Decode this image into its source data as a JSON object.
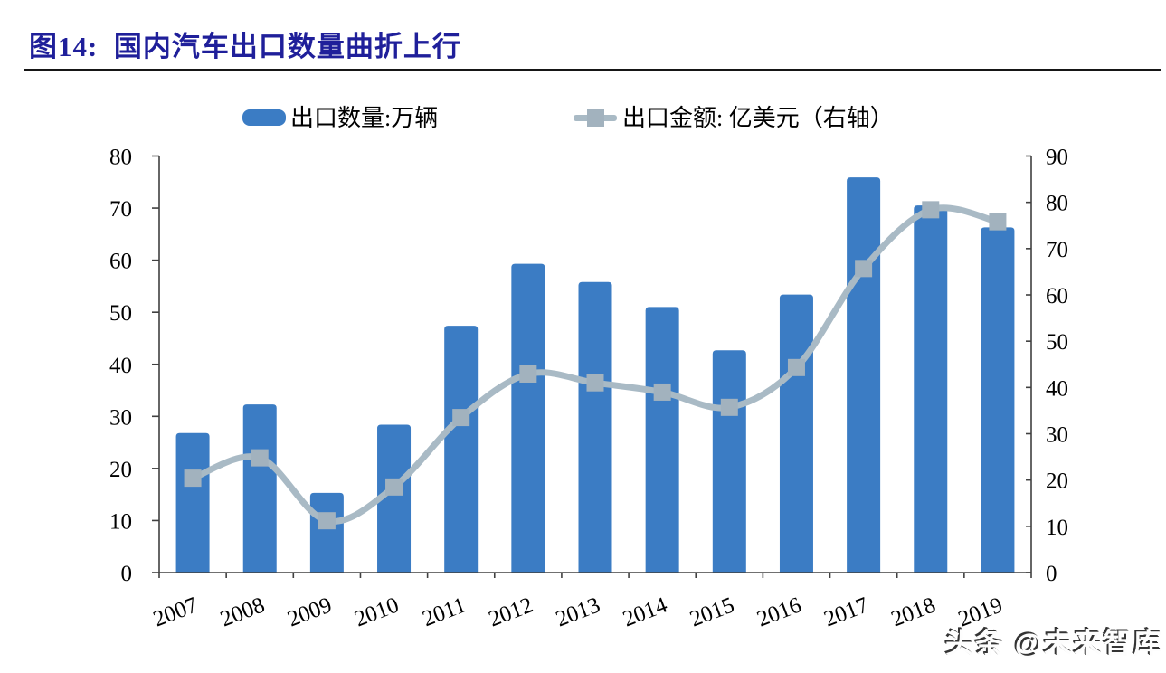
{
  "figure": {
    "title": "图14:  国内汽车出口数量曲折上行"
  },
  "watermark": {
    "text": "头条 @未来智库"
  },
  "colors": {
    "title": "#1f1f9a",
    "divider": "#161616",
    "bar": "#3b7cc4",
    "line": "#a9bac5",
    "marker": "#a2b2be",
    "axis": "#404040",
    "tick_text": "#000000"
  },
  "chart_data": {
    "type": "bar+line",
    "categories": [
      "2007",
      "2008",
      "2009",
      "2010",
      "2011",
      "2012",
      "2013",
      "2014",
      "2015",
      "2016",
      "2017",
      "2018",
      "2019"
    ],
    "series": [
      {
        "name": "出口数量:万辆",
        "type": "bar",
        "axis": "left",
        "values": [
          26.8,
          32.3,
          15.3,
          28.4,
          47.4,
          59.3,
          55.8,
          51.0,
          42.7,
          53.4,
          75.9,
          70.5,
          66.3
        ]
      },
      {
        "name": "出口金额: 亿美元（右轴）",
        "type": "line",
        "axis": "right",
        "values": [
          20.4,
          24.8,
          11.2,
          18.5,
          33.5,
          42.9,
          41.0,
          39.0,
          35.7,
          44.3,
          65.7,
          78.4,
          75.8
        ]
      }
    ],
    "left_axis": {
      "min": 0,
      "max": 80,
      "step": 10,
      "ticks": [
        0,
        10,
        20,
        30,
        40,
        50,
        60,
        70,
        80
      ]
    },
    "right_axis": {
      "min": 0,
      "max": 90,
      "step": 10,
      "ticks": [
        0,
        10,
        20,
        30,
        40,
        50,
        60,
        70,
        80,
        90
      ]
    },
    "grid": false,
    "legend_position": "top-center",
    "x_label_rotation_deg": -21
  }
}
